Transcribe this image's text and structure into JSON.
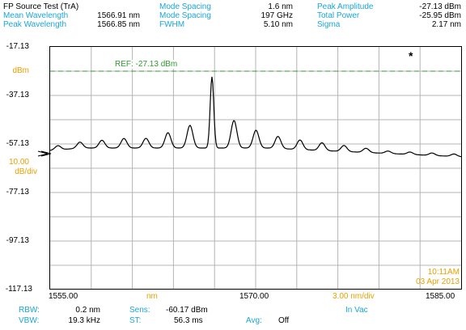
{
  "header": {
    "title": "FP Source Test (TrA)",
    "col1": [
      {
        "label": "Mean Wavelength",
        "value": "1566.91 nm"
      },
      {
        "label": "Peak Wavelength",
        "value": "1566.85 nm"
      }
    ],
    "col2": [
      {
        "label": "Mode Spacing",
        "value": "1.6 nm"
      },
      {
        "label": "Mode Spacing",
        "value": "197 GHz"
      },
      {
        "label": "FWHM",
        "value": "5.10 nm"
      }
    ],
    "col3": [
      {
        "label": "Peak Amplitude",
        "value": "-27.13 dBm"
      },
      {
        "label": "Total Power",
        "value": "-25.95 dBm"
      },
      {
        "label": "Sigma",
        "value": "2.17 nm"
      }
    ]
  },
  "plot": {
    "y_ticks": [
      "-17.13",
      "-37.13",
      "-57.13",
      "-77.13",
      "-97.13",
      "-117.13"
    ],
    "unit_label": "dBm",
    "scale_value": "10.00",
    "scale_unit": "dB/div",
    "ref_label": "REF: -27.13 dBm",
    "marker": "*",
    "time": "10:11AM",
    "date": "03 Apr 2013",
    "colors": {
      "trace": "#000000",
      "grid": "#b4b4b4",
      "ref": "#2f9b2f",
      "accent": "#e8a000",
      "label": "#1aa6d6"
    }
  },
  "x_axis": {
    "left": "1555.00",
    "unit": "nm",
    "center": "1570.00",
    "span": "3.00 nm/div",
    "right": "1585.00"
  },
  "footer": {
    "rbw_label": "RBW:",
    "rbw_value": "0.2 nm",
    "sens_label": "Sens:",
    "sens_value": "-60.17 dBm",
    "vbw_label": "VBW:",
    "vbw_value": "19.3 kHz",
    "st_label": "ST:",
    "st_value": "56.3 ms",
    "avg_label": "Avg:",
    "avg_value": "Off",
    "medium": "In Vac"
  }
}
